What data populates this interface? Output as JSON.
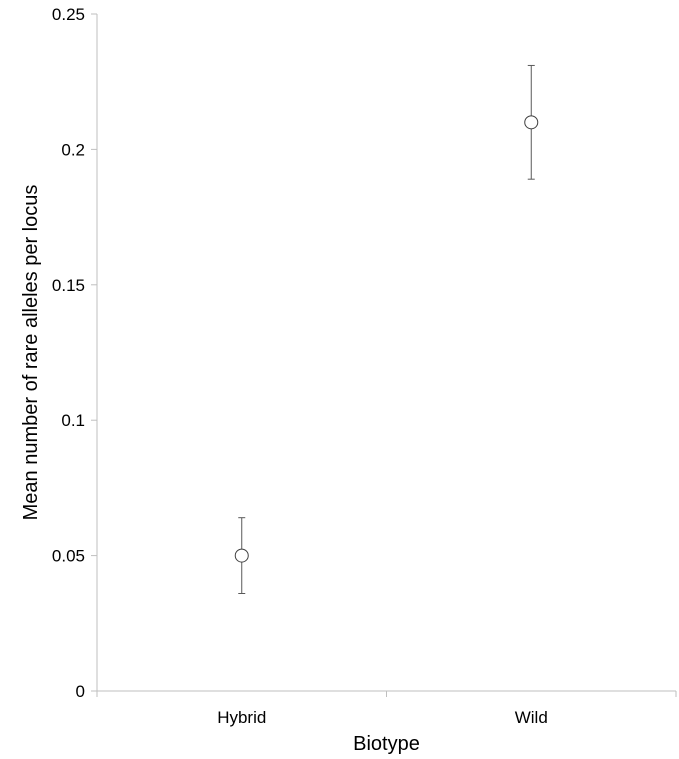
{
  "chart_data": {
    "type": "scatter",
    "title": "",
    "xlabel": "Biotype",
    "ylabel": "Mean number of rare alleles per locus",
    "categories": [
      "Hybrid",
      "Wild"
    ],
    "series": [
      {
        "values": [
          0.05,
          0.21
        ],
        "error_low": [
          0.036,
          0.189
        ],
        "error_high": [
          0.064,
          0.231
        ]
      }
    ],
    "ylim": [
      0,
      0.25
    ],
    "yticks": [
      0,
      0.05,
      0.1,
      0.15,
      0.2,
      0.25
    ],
    "ytick_labels": [
      "0",
      "0.05",
      "0.1",
      "0.15",
      "0.2",
      "0.25"
    ],
    "grid": false,
    "legend": "none",
    "colors": {
      "axis": "#bfbfbf",
      "marker_fill": "#ffffff",
      "marker_stroke": "#404040",
      "error_bar": "#595959"
    }
  }
}
